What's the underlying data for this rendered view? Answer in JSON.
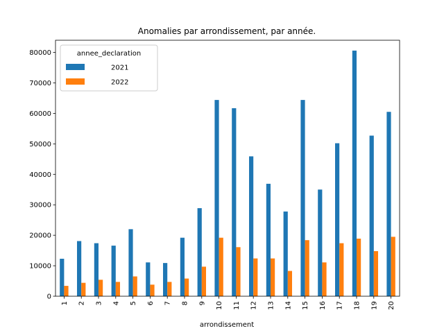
{
  "chart_data": {
    "type": "bar",
    "title": "Anomalies par arrondissement, par année.",
    "xlabel": "arrondissement",
    "ylabel": "",
    "ylim": [
      0,
      84000
    ],
    "yticks": [
      0,
      10000,
      20000,
      30000,
      40000,
      50000,
      60000,
      70000,
      80000
    ],
    "grid": false,
    "legend": {
      "title": "annee_declaration",
      "placement": "top-left"
    },
    "categories": [
      "1",
      "2",
      "3",
      "4",
      "5",
      "6",
      "7",
      "8",
      "9",
      "10",
      "11",
      "12",
      "13",
      "14",
      "15",
      "16",
      "17",
      "18",
      "19",
      "20"
    ],
    "series": [
      {
        "name": "2021",
        "color": "#1f77b4",
        "values": [
          12300,
          18100,
          17400,
          16600,
          22000,
          11100,
          10900,
          19200,
          28900,
          64400,
          61700,
          45900,
          36900,
          27800,
          64400,
          35000,
          50200,
          80600,
          52700,
          60500
        ]
      },
      {
        "name": "2022",
        "color": "#ff7f0e",
        "values": [
          3400,
          4400,
          5400,
          4700,
          6500,
          3800,
          4700,
          5800,
          9700,
          19200,
          16100,
          12400,
          12400,
          8300,
          18400,
          11100,
          17400,
          18900,
          14800,
          19500
        ]
      }
    ]
  }
}
